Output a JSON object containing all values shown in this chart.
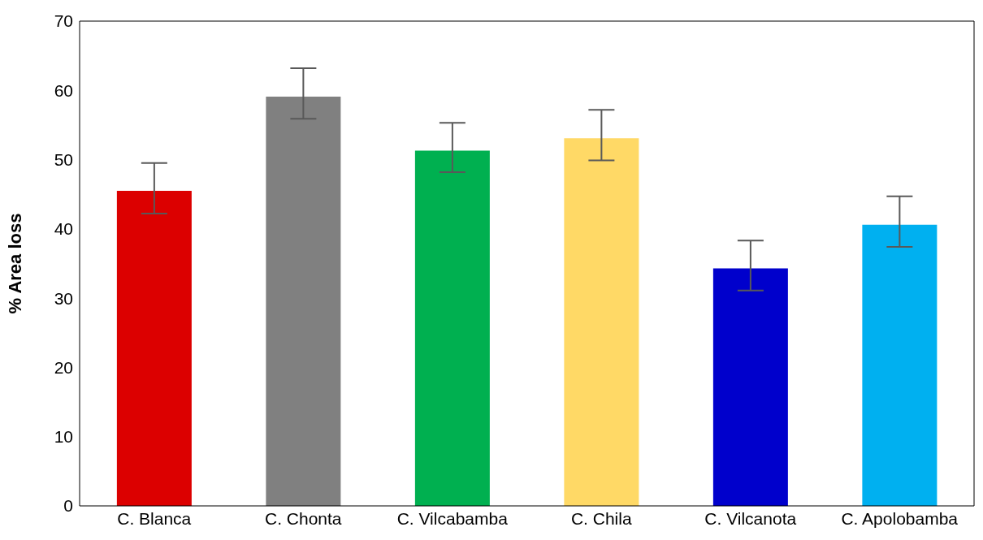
{
  "chart_data": {
    "type": "bar",
    "ylabel": "% Area loss",
    "categories": [
      "C. Blanca",
      "C. Chonta",
      "C. Vilcabamba",
      "C. Chila",
      "C. Vilcanota",
      "C. Apolobamba"
    ],
    "values": [
      45.5,
      59.1,
      51.3,
      53.1,
      34.3,
      40.6
    ],
    "colors": [
      "#dc0000",
      "#808080",
      "#00b050",
      "#ffd966",
      "#0000cc",
      "#00b0f0"
    ],
    "errors": [
      [
        42.2,
        49.5
      ],
      [
        55.9,
        63.2
      ],
      [
        48.2,
        55.3
      ],
      [
        49.9,
        57.2
      ],
      [
        31.1,
        38.3
      ],
      [
        37.4,
        44.7
      ]
    ],
    "ylim": [
      0,
      70
    ],
    "yticks": [
      0,
      10,
      20,
      30,
      40,
      50,
      60,
      70
    ],
    "grid": false,
    "legend": false
  }
}
